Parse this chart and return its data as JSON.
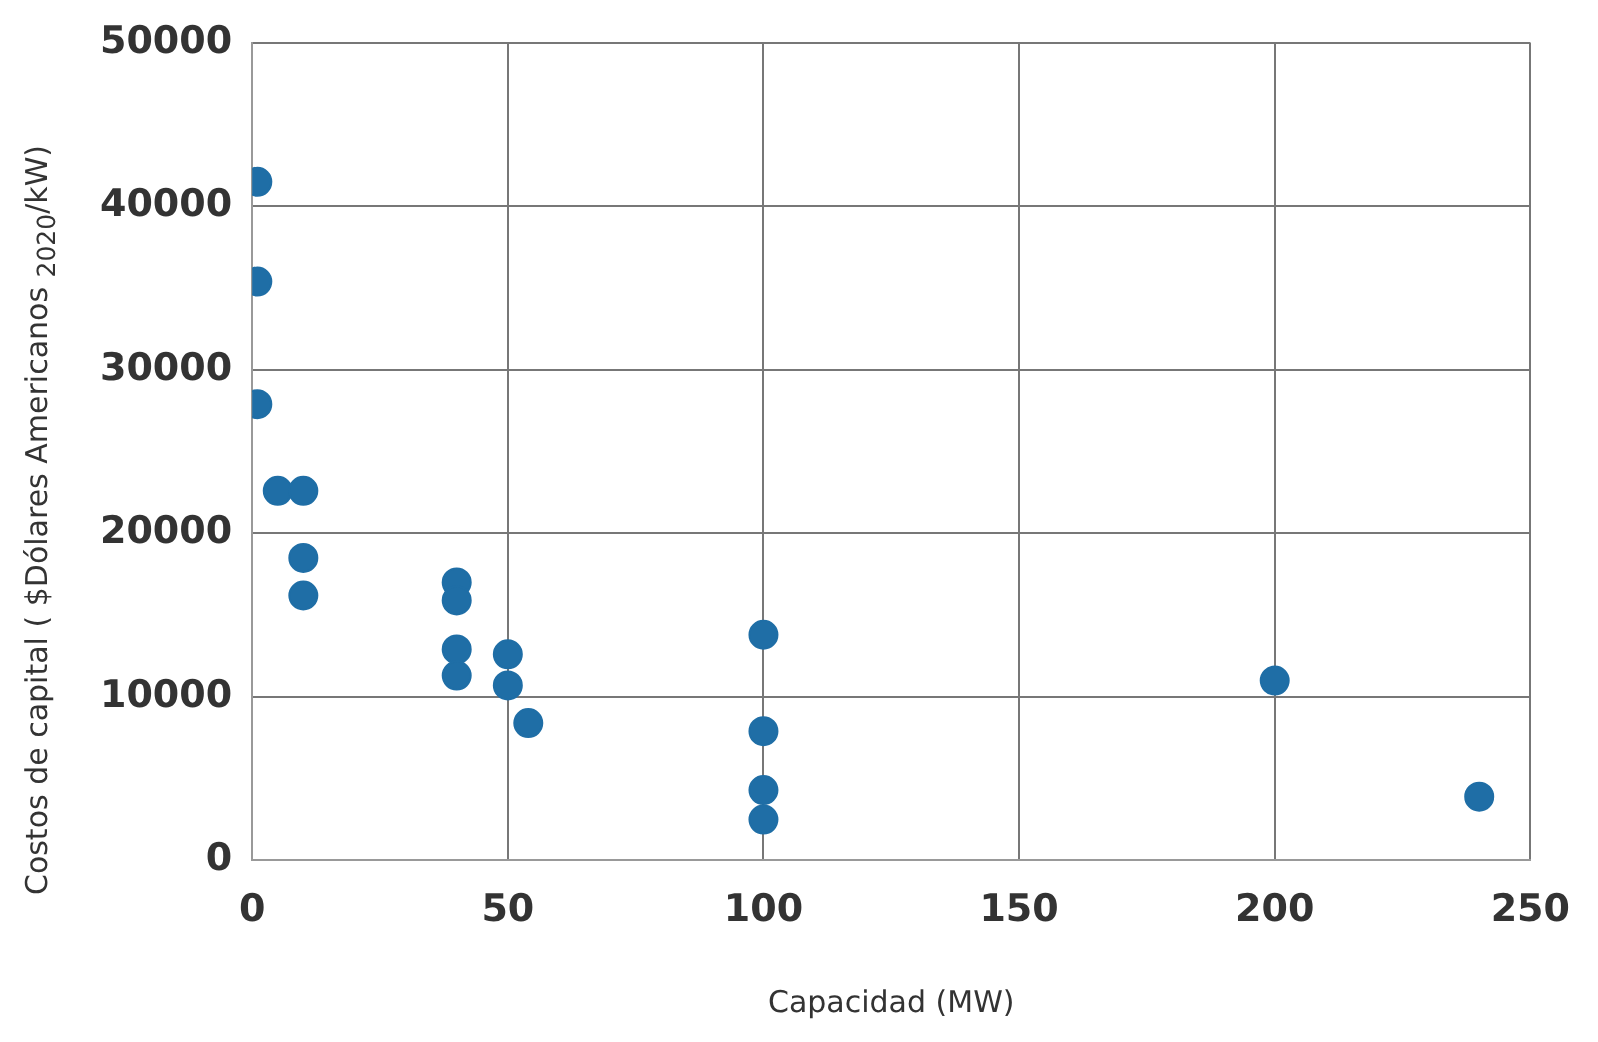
{
  "chart_data": {
    "type": "scatter",
    "xlabel": "Capacidad (MW)",
    "ylabel": "Costos de capital ( $Dólares Americanos $_{2020}$/kW)",
    "xlim": [
      0,
      250
    ],
    "xticks": [
      0,
      50,
      100,
      150,
      200,
      250
    ],
    "ylim": [
      0,
      50000
    ],
    "yticks": [
      0,
      10000,
      20000,
      30000,
      40000,
      50000
    ],
    "grid": true,
    "legend": false,
    "marker": "circle",
    "series": [
      {
        "color": "#1f6ea6",
        "x": [
          1,
          1,
          1,
          5,
          10,
          10,
          10,
          40,
          40,
          40,
          40,
          50,
          50,
          54,
          100,
          100,
          100,
          100,
          200,
          240
        ],
        "values": [
          41500,
          35400,
          27900,
          22600,
          22600,
          18500,
          16200,
          17000,
          15900,
          12900,
          11300,
          12600,
          10700,
          8400,
          13800,
          7900,
          4300,
          2500,
          11000,
          3900
        ]
      }
    ]
  }
}
